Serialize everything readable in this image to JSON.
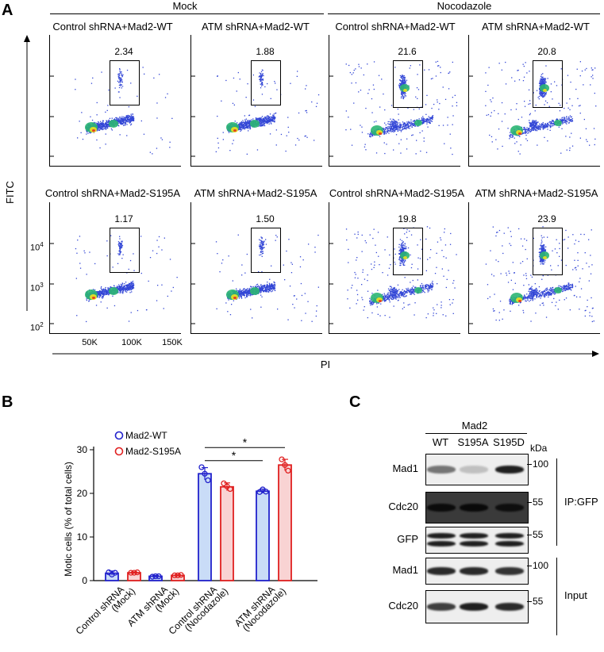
{
  "panel_a": {
    "letter": "A",
    "header_mock": "Mock",
    "header_nocodazole": "Nocodazole",
    "y_axis_label": "FITC",
    "x_axis_label": "PI",
    "y_ticks": [
      "10^4",
      "10^3",
      "10^2"
    ],
    "y_tick_parts": [
      {
        "base": "10",
        "exp": "4"
      },
      {
        "base": "10",
        "exp": "3"
      },
      {
        "base": "10",
        "exp": "2"
      }
    ],
    "x_ticks": [
      "50K",
      "100K",
      "150K"
    ],
    "row1_titles": [
      "Control shRNA+Mad2-WT",
      "ATM shRNA+Mad2-WT",
      "Control shRNA+Mad2-WT",
      "ATM shRNA+Mad2-WT"
    ],
    "row1_values": [
      "2.34",
      "1.88",
      "21.6",
      "20.8"
    ],
    "row2_titles": [
      "Control shRNA+Mad2-S195A",
      "ATM shRNA+Mad2-S195A",
      "Control shRNA+Mad2-S195A",
      "ATM shRNA+Mad2-S195A"
    ],
    "row2_values": [
      "1.17",
      "1.50",
      "19.8",
      "23.9"
    ]
  },
  "panel_b": {
    "letter": "B",
    "chart_data": {
      "type": "bar",
      "ylabel": "Motic cells (% of total cells)",
      "xlabel": "",
      "ylim": [
        0,
        30
      ],
      "yticks": [
        0,
        10,
        20,
        30
      ],
      "categories": [
        "Control shRNA (Mock)",
        "ATM shRNA (Mock)",
        "Control shRNA (Nocodazole)",
        "ATM shRNA (Nocodazole)"
      ],
      "category_lines": [
        [
          "Control shRNA",
          "(Mock)"
        ],
        [
          "ATM shRNA",
          "(Mock)"
        ],
        [
          "Control shRNA",
          "(Nocodazole)"
        ],
        [
          "ATM shRNA",
          "(Nocodazole)"
        ]
      ],
      "series": [
        {
          "name": "Mad2-WT",
          "color": "#2222cc",
          "fill": "#c9dcf7",
          "values": [
            1.7,
            1.0,
            24.5,
            20.5
          ],
          "errors": [
            0.5,
            0.2,
            1.4,
            0.5
          ],
          "points": [
            [
              1.9,
              1.4,
              1.8
            ],
            [
              0.9,
              1.0,
              1.0
            ],
            [
              26.0,
              24.5,
              23.0
            ],
            [
              20.3,
              20.9,
              20.4
            ]
          ]
        },
        {
          "name": "Mad2-S195A",
          "color": "#e02020",
          "fill": "#f9d3d3",
          "values": [
            1.8,
            1.2,
            21.5,
            26.5
          ],
          "errors": [
            0.2,
            0.2,
            0.9,
            1.3
          ],
          "points": [
            [
              1.8,
              1.8,
              1.9
            ],
            [
              1.2,
              1.2,
              1.3
            ],
            [
              22.3,
              21.6,
              21.0
            ],
            [
              27.8,
              26.5,
              25.2
            ]
          ]
        }
      ],
      "significance": [
        {
          "label": "*",
          "from_group": 2,
          "to_group": 3,
          "level": 27.5
        },
        {
          "label": "*",
          "from_group": 2,
          "to_group": 3,
          "level": 30.5
        }
      ]
    }
  },
  "panel_c": {
    "letter": "C",
    "header": "Mad2",
    "lanes": [
      "WT",
      "S195A",
      "S195D"
    ],
    "kda_label": "kDa",
    "ip_label": "IP:GFP",
    "input_label": "Input",
    "rows": [
      {
        "name": "Mad1",
        "kda": "100",
        "intensities": [
          0.55,
          0.2,
          0.95
        ]
      },
      {
        "name": "Cdc20",
        "kda": "55",
        "intensities": [
          0.45,
          0.55,
          0.3
        ]
      },
      {
        "name": "GFP",
        "kda": "55",
        "intensities": [
          0.95,
          0.95,
          0.95
        ]
      },
      {
        "name": "Mad1",
        "kda": "100",
        "intensities": [
          0.9,
          0.9,
          0.85
        ]
      },
      {
        "name": "Cdc20",
        "kda": "55",
        "intensities": [
          0.8,
          0.95,
          0.9
        ]
      }
    ]
  }
}
